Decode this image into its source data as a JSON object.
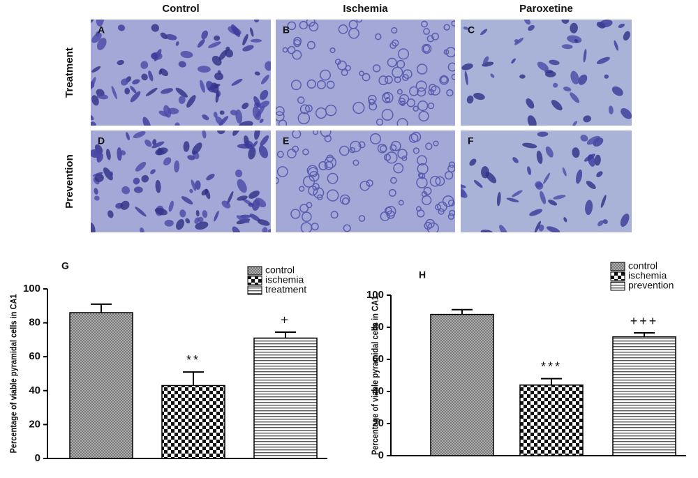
{
  "micrographs": {
    "columns": [
      "Control",
      "Ischemia",
      "Paroxetine"
    ],
    "rows": [
      "Treatment",
      "Prevention"
    ],
    "panels": [
      [
        "A",
        "B",
        "C"
      ],
      [
        "D",
        "E",
        "F"
      ]
    ]
  },
  "chart_data": [
    {
      "type": "bar",
      "title": "G",
      "y_label": "Percentage of viable pyramidal cells in CA1",
      "ylim": [
        0,
        100
      ],
      "yticks": [
        0,
        20,
        40,
        60,
        80,
        100
      ],
      "series": [
        {
          "name": "control",
          "color": "#8c8c8c",
          "pattern": "crosshatch",
          "values": [
            86
          ],
          "errors": [
            5
          ]
        },
        {
          "name": "ischemia",
          "color": "#000000",
          "pattern": "checker",
          "values": [
            43
          ],
          "errors": [
            8
          ]
        },
        {
          "name": "treatment",
          "color": "#555555",
          "pattern": "hstripes",
          "values": [
            71
          ],
          "errors": [
            3.5
          ]
        }
      ],
      "significance": [
        null,
        "**",
        "+"
      ]
    },
    {
      "type": "bar",
      "title": "H",
      "y_label": "Percentage of viable pyramidal cells in CA1",
      "ylim": [
        0,
        100
      ],
      "yticks": [
        0,
        20,
        40,
        60,
        80,
        100
      ],
      "series": [
        {
          "name": "control",
          "color": "#8c8c8c",
          "pattern": "crosshatch",
          "values": [
            88
          ],
          "errors": [
            3
          ]
        },
        {
          "name": "ischemia",
          "color": "#000000",
          "pattern": "checker",
          "values": [
            44
          ],
          "errors": [
            4
          ]
        },
        {
          "name": "prevention",
          "color": "#555555",
          "pattern": "hstripes",
          "values": [
            74
          ],
          "errors": [
            2.5
          ]
        }
      ],
      "significance": [
        null,
        "***",
        "+++"
      ]
    }
  ]
}
